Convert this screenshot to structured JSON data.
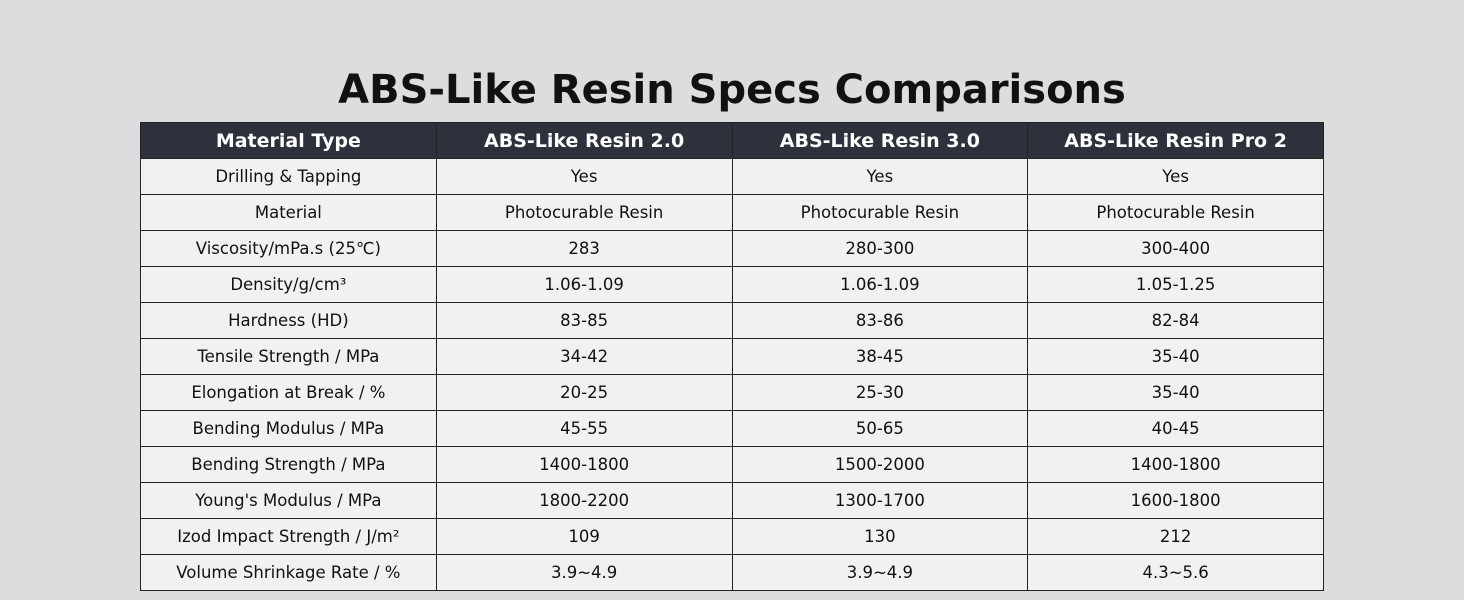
{
  "title": "ABS-Like Resin Specs Comparisons",
  "table": {
    "header": [
      "Material Type",
      "ABS-Like Resin 2.0",
      "ABS-Like Resin 3.0",
      "ABS-Like Resin Pro 2"
    ],
    "rows": [
      [
        "Drilling & Tapping",
        "Yes",
        "Yes",
        "Yes"
      ],
      [
        "Material",
        "Photocurable Resin",
        "Photocurable Resin",
        "Photocurable Resin"
      ],
      [
        "Viscosity/mPa.s (25℃)",
        "283",
        "280-300",
        "300-400"
      ],
      [
        "Density/g/cm³",
        "1.06-1.09",
        "1.06-1.09",
        "1.05-1.25"
      ],
      [
        "Hardness (HD)",
        "83-85",
        "83-86",
        "82-84"
      ],
      [
        "Tensile Strength / MPa",
        "34-42",
        "38-45",
        "35-40"
      ],
      [
        "Elongation at Break / %",
        "20-25",
        "25-30",
        "35-40"
      ],
      [
        "Bending Modulus / MPa",
        "45-55",
        "50-65",
        "40-45"
      ],
      [
        "Bending Strength / MPa",
        "1400-1800",
        "1500-2000",
        "1400-1800"
      ],
      [
        "Young's Modulus / MPa",
        "1800-2200",
        "1300-1700",
        "1600-1800"
      ],
      [
        "Izod Impact Strength / J/m²",
        "109",
        "130",
        "212"
      ],
      [
        "Volume Shrinkage Rate / %",
        "3.9~4.9",
        "3.9~4.9",
        "4.3~5.6"
      ]
    ]
  }
}
